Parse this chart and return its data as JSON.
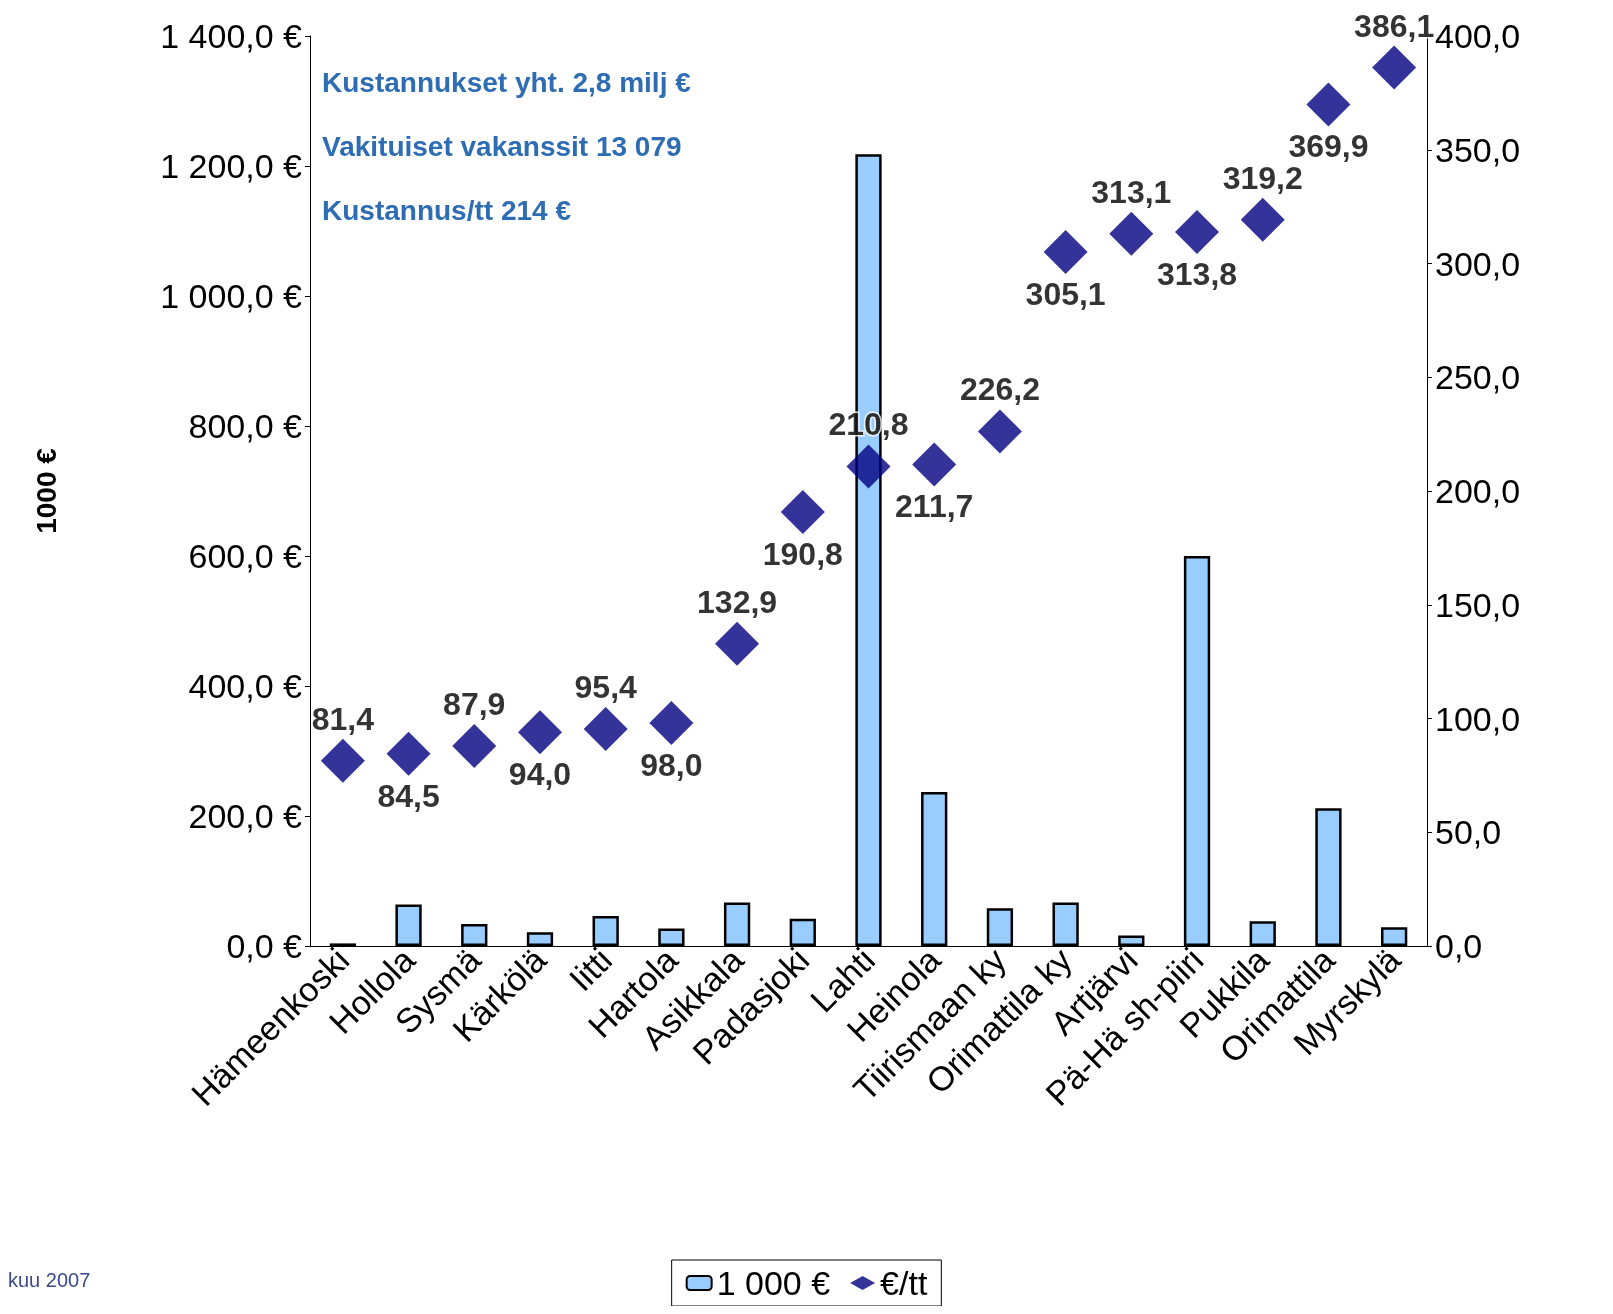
{
  "chart_data": {
    "type": "bar",
    "ylabel": "1000 €",
    "categories": [
      "Hämeenkoski",
      "Hollola",
      "Sysmä",
      "Kärkölä",
      "Iitti",
      "Hartola",
      "Asikkala",
      "Padasjoki",
      "Lahti",
      "Heinola",
      "Tiirismaan ky",
      "Orimattila ky",
      "Artjärvi",
      "Pä-Hä sh-piiri",
      "Pukkila",
      "Orimattila",
      "Myrskylä"
    ],
    "series": [
      {
        "name": "1 000 €",
        "color": "#99ccff",
        "values": [
          4,
          64,
          34,
          21,
          46,
          27,
          67,
          42,
          1218,
          237,
          58,
          67,
          16,
          600,
          38,
          212,
          29
        ]
      },
      {
        "name": "€/tt",
        "type": "scatter",
        "axis": "y2",
        "color": "#000080",
        "values": [
          81.4,
          84.5,
          87.9,
          94.0,
          95.4,
          98.0,
          132.9,
          190.8,
          210.8,
          211.7,
          226.2,
          305.1,
          313.1,
          313.8,
          319.2,
          369.9,
          386.1
        ],
        "value_labels": [
          "81,4",
          "84,5",
          "87,9",
          "94,0",
          "95,4",
          "98,0",
          "132,9",
          "190,8",
          "210,8",
          "211,7",
          "226,2",
          "305,1",
          "313,1",
          "313,8",
          "319,2",
          "369,9",
          "386,1"
        ]
      }
    ],
    "ylim": [
      0,
      1400
    ],
    "yticks": [
      {
        "value": 0,
        "label": "0,0 €"
      },
      {
        "value": 200,
        "label": "200,0 €"
      },
      {
        "value": 400,
        "label": "400,0 €"
      },
      {
        "value": 600,
        "label": "600,0 €"
      },
      {
        "value": 800,
        "label": "800,0 €"
      },
      {
        "value": 1000,
        "label": "1 000,0 €"
      },
      {
        "value": 1200,
        "label": "1 200,0 €"
      },
      {
        "value": 1400,
        "label": "1 400,0 €"
      }
    ],
    "y2lim": [
      0,
      400
    ],
    "y2ticks": [
      {
        "value": 0,
        "label": "0,0"
      },
      {
        "value": 50,
        "label": "50,0"
      },
      {
        "value": 100,
        "label": "100,0"
      },
      {
        "value": 150,
        "label": "150,0"
      },
      {
        "value": 200,
        "label": "200,0"
      },
      {
        "value": 250,
        "label": "250,0"
      },
      {
        "value": 300,
        "label": "300,0"
      },
      {
        "value": 350,
        "label": "350,0"
      },
      {
        "value": 400,
        "label": "400,0"
      }
    ],
    "marker": "diamond",
    "grid": false,
    "legend": "bottom",
    "annotations": [
      "Kustannukset yht. 2,8 milj €",
      "Vakituiset vakanssit 13 079",
      "Kustannus/tt 214 €",
      "kuu 2007"
    ]
  }
}
